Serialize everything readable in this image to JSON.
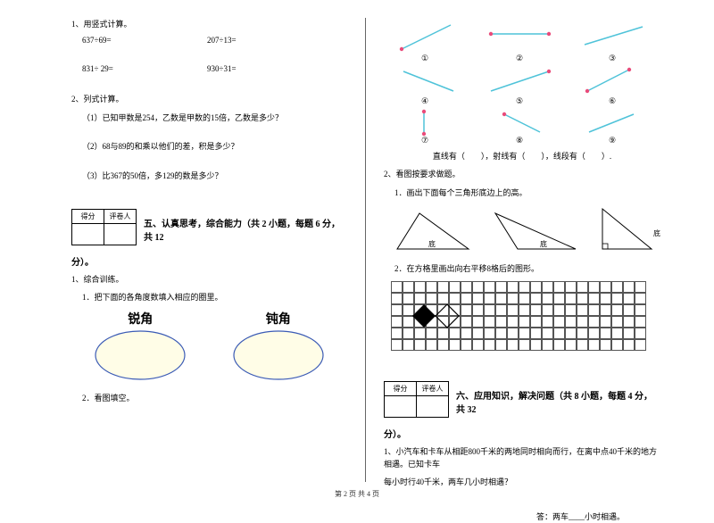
{
  "left": {
    "q1": {
      "title": "1、用竖式计算。",
      "items": [
        "637÷69=",
        "207÷13=",
        "831÷ 29=",
        "930÷31="
      ]
    },
    "q2": {
      "title": "2、列式计算。",
      "items": [
        "（1）已知甲数是254，乙数是甲数的15倍，乙数是多少？",
        "（2）68与89的和乘以他们的差，积是多少？",
        "（3）比367的50倍，多129的数是多少？"
      ]
    },
    "score": {
      "h1": "得分",
      "h2": "评卷人"
    },
    "section5": "五、认真思考，综合能力（共 2 小题，每题 6 分，共 12",
    "section5b": "分）。",
    "train": {
      "t": "1、综合训练。",
      "s1": "1．把下面的各角度数填入相应的圈里。"
    },
    "ovals": {
      "a": "锐角",
      "b": "钝角"
    },
    "s2": "2．看图填空。"
  },
  "right": {
    "circled": [
      "①",
      "②",
      "③",
      "④",
      "⑤",
      "⑥",
      "⑦",
      "⑧",
      "⑨"
    ],
    "blank_line": "直线有（　　），射线有（　　），线段有（　　）.",
    "q2": {
      "t": "2、看图按要求做题。",
      "s1": "1．画出下面每个三角形底边上的高。",
      "bottom": "底",
      "s2": "2．在方格里画出向右平移8格后的图形。"
    },
    "score": {
      "h1": "得分",
      "h2": "评卷人"
    },
    "section6": "六、应用知识，解决问题（共 8 小题，每题 4 分，共 32",
    "section6b": "分）。",
    "word": {
      "q1a": "1、小汽车和卡车从相距800千米的两地同时相向而行，在离中点40千米的地方相遇。已知卡车",
      "q1b": "每小时行40千米，两车几小时相遇？",
      "ans": "答：两车____小时相遇。"
    }
  },
  "footer": "第 2 页 共 4 页",
  "colors": {
    "line": "#4fc3d9",
    "dot": "#e94b7a",
    "oval_fill": "#fffde7",
    "oval_stroke": "#3b5bb5"
  }
}
